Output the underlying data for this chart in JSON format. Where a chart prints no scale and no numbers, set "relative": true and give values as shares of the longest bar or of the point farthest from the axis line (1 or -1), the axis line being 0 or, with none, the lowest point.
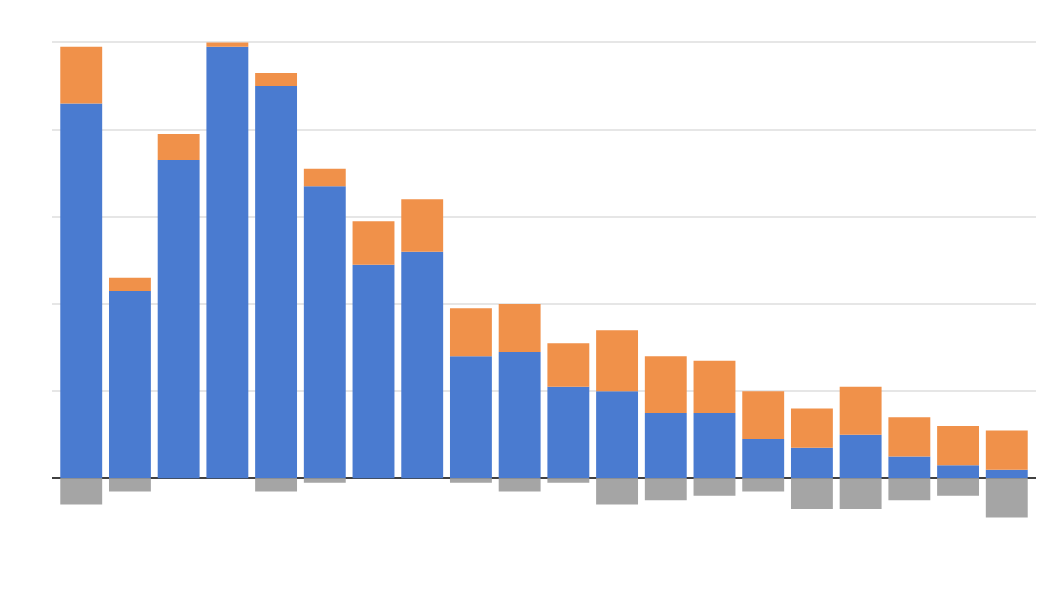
{
  "chart_data": {
    "type": "bar",
    "stacked": true,
    "relative": true,
    "grid": "y",
    "categories": [
      null,
      null,
      null,
      null,
      null,
      null,
      null,
      null,
      null,
      null,
      null,
      null,
      null,
      null,
      null,
      null,
      null,
      null,
      null,
      null
    ],
    "series": [
      {
        "color": "#4a7bd0",
        "values": [
          0.86,
          0.43,
          0.73,
          0.99,
          0.9,
          0.67,
          0.49,
          0.52,
          0.28,
          0.29,
          0.21,
          0.2,
          0.15,
          0.15,
          0.09,
          0.07,
          0.1,
          0.05,
          0.03,
          0.02
        ]
      },
      {
        "color": "#f0914a",
        "values": [
          0.13,
          0.03,
          0.06,
          0.01,
          0.03,
          0.04,
          0.1,
          0.12,
          0.11,
          0.11,
          0.1,
          0.14,
          0.13,
          0.12,
          0.11,
          0.09,
          0.11,
          0.09,
          0.09,
          0.09
        ]
      },
      {
        "color": "#a5a5a5",
        "values": [
          -0.06,
          -0.03,
          0,
          0,
          -0.03,
          -0.01,
          0,
          0,
          -0.01,
          -0.03,
          -0.01,
          -0.06,
          -0.05,
          -0.04,
          -0.03,
          -0.07,
          -0.07,
          -0.05,
          -0.04,
          -0.09
        ]
      }
    ]
  }
}
